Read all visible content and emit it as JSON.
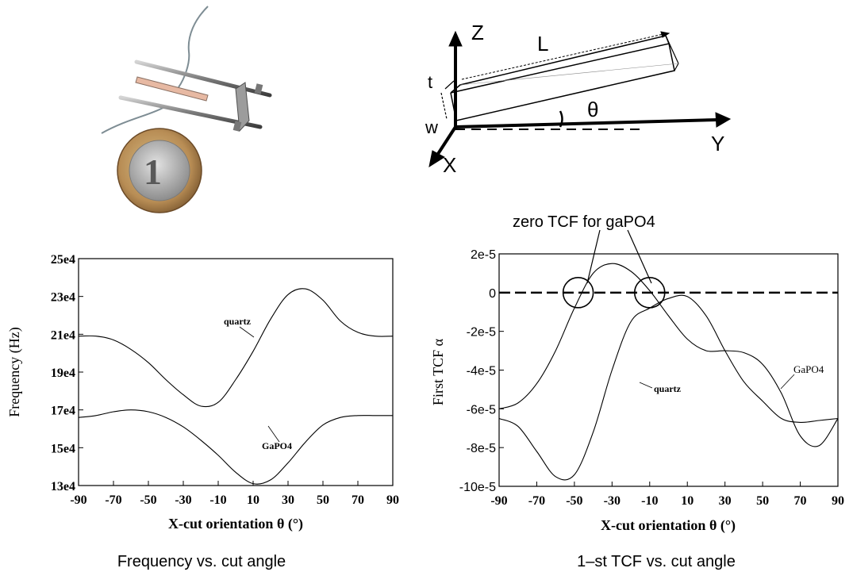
{
  "photo": {
    "coin_text": "1"
  },
  "diagram": {
    "axis_z": "Z",
    "axis_y": "Y",
    "axis_x": "X",
    "label_L": "L",
    "label_t": "t",
    "label_w": "w",
    "label_theta": "θ"
  },
  "annotation": {
    "zero_tcf": "zero TCF  for gaPO4"
  },
  "chart_data": [
    {
      "type": "line",
      "caption": "Frequency vs. cut angle",
      "xlabel": "X-cut orientation  θ   (°)",
      "ylabel": "Frequency (Hz)",
      "xlim": [
        -90,
        90
      ],
      "ylim": [
        130000,
        250000
      ],
      "x_ticks": [
        -90,
        -70,
        -50,
        -30,
        -10,
        10,
        30,
        50,
        70,
        90
      ],
      "x_tick_labels": [
        "-90",
        "-70",
        "-50",
        "-30",
        "-10",
        "10",
        "30",
        "50",
        "70",
        "90"
      ],
      "y_ticks": [
        130000,
        150000,
        170000,
        190000,
        210000,
        230000,
        250000
      ],
      "y_tick_labels": [
        "13e4",
        "15e4",
        "17e4",
        "19e4",
        "21e4",
        "23e4",
        "25e4"
      ],
      "grid": false,
      "legend": "none",
      "series": [
        {
          "name": "quartz",
          "x": [
            -90,
            -80,
            -70,
            -60,
            -50,
            -40,
            -30,
            -20,
            -10,
            0,
            10,
            20,
            30,
            40,
            50,
            60,
            70,
            80,
            90
          ],
          "y": [
            209000,
            209000,
            207000,
            202000,
            195000,
            186000,
            178000,
            172000,
            174000,
            186000,
            201000,
            218000,
            231000,
            234000,
            228000,
            217000,
            211000,
            209000,
            209000
          ]
        },
        {
          "name": "GaPO4",
          "x": [
            -90,
            -80,
            -70,
            -60,
            -50,
            -40,
            -30,
            -20,
            -10,
            0,
            10,
            20,
            30,
            40,
            50,
            60,
            70,
            80,
            90
          ],
          "y": [
            166000,
            167000,
            169000,
            170000,
            169000,
            166000,
            161000,
            154000,
            146000,
            137000,
            131000,
            133000,
            142000,
            153000,
            162000,
            166000,
            167000,
            167000,
            167000
          ]
        }
      ]
    },
    {
      "type": "line",
      "caption": "1–st TCF vs. cut angle",
      "xlabel": "X-cut orientation  θ   (°)",
      "ylabel": "First TCF  α",
      "xlim": [
        -90,
        90
      ],
      "ylim": [
        -0.0001,
        2e-05
      ],
      "x_ticks": [
        -90,
        -70,
        -50,
        -30,
        -10,
        10,
        30,
        50,
        70,
        90
      ],
      "x_tick_labels": [
        "-90",
        "-70",
        "-50",
        "-30",
        "-10",
        "10",
        "30",
        "50",
        "70",
        "90"
      ],
      "y_ticks": [
        -0.0001,
        -8e-05,
        -6e-05,
        -4e-05,
        -2e-05,
        0,
        2e-05
      ],
      "y_tick_labels": [
        "-10e-5",
        "-8e-5",
        "-6e-5",
        "-4e-5",
        "-2e-5",
        "0",
        "2e-5"
      ],
      "grid": false,
      "legend": "none",
      "reference_line_y": 0,
      "zero_crossings_x": [
        -48,
        -10
      ],
      "series": [
        {
          "name": "GaPO4",
          "x": [
            -90,
            -80,
            -70,
            -60,
            -50,
            -40,
            -30,
            -20,
            -10,
            0,
            10,
            20,
            30,
            40,
            50,
            60,
            70,
            80,
            90
          ],
          "y": [
            -6e-05,
            -5.7e-05,
            -4.7e-05,
            -3e-05,
            -8e-06,
            1e-05,
            1.5e-05,
            1.1e-05,
            1e-06,
            -1.2e-05,
            -2.4e-05,
            -3e-05,
            -3e-05,
            -3.1e-05,
            -3.7e-05,
            -5.2e-05,
            -7.4e-05,
            -7.9e-05,
            -6.5e-05
          ]
        },
        {
          "name": "quartz",
          "x": [
            -90,
            -80,
            -70,
            -60,
            -50,
            -40,
            -30,
            -20,
            -10,
            0,
            10,
            20,
            30,
            40,
            50,
            60,
            70,
            80,
            90
          ],
          "y": [
            -6.5e-05,
            -6.9e-05,
            -8.2e-05,
            -9.5e-05,
            -9.4e-05,
            -7.2e-05,
            -4e-05,
            -1.5e-05,
            -8e-06,
            -3e-06,
            -2e-06,
            -1.2e-05,
            -3e-05,
            -4.6e-05,
            -5.6e-05,
            -6.5e-05,
            -6.7e-05,
            -6.6e-05,
            -6.5e-05
          ]
        }
      ]
    }
  ]
}
